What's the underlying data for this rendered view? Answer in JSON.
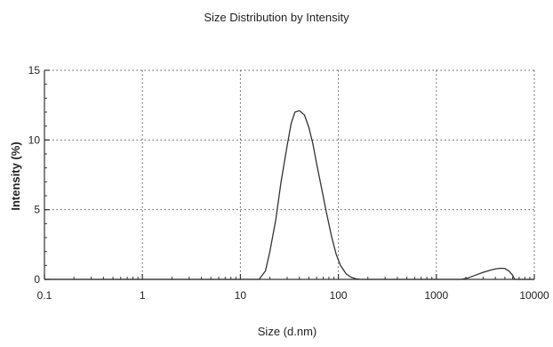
{
  "chart_data": {
    "type": "line",
    "title": "Size Distribution by Intensity",
    "xlabel": "Size (d.nm)",
    "ylabel": "Intensity (%)",
    "xscale": "log",
    "xlim": [
      0.1,
      10000
    ],
    "ylim": [
      0,
      15
    ],
    "x_ticks": [
      0.1,
      1,
      10,
      100,
      1000,
      10000
    ],
    "x_tick_labels": [
      "0.1",
      "1",
      "10",
      "100",
      "1000",
      "10000"
    ],
    "y_ticks": [
      0,
      5,
      10,
      15
    ],
    "y_tick_labels": [
      "0",
      "5",
      "10",
      "15"
    ],
    "grid": true,
    "line_color": "#333333",
    "series": [
      {
        "x": [
          0.1,
          0.3,
          1,
          3,
          10,
          13,
          15.5,
          18,
          20,
          23,
          26,
          30,
          33,
          36,
          40,
          45,
          50,
          55,
          60,
          68,
          75,
          85,
          95,
          105,
          120,
          135,
          150,
          165,
          180,
          300,
          1000,
          1500,
          1800,
          2100,
          2500,
          3000,
          3500,
          4000,
          4500,
          5000,
          5500,
          6000,
          6300,
          7000,
          10000
        ],
        "y": [
          0,
          0,
          0,
          0,
          0,
          0,
          0,
          0.6,
          2.0,
          4.3,
          7.0,
          9.6,
          11.2,
          12.0,
          12.1,
          11.8,
          10.9,
          9.7,
          8.3,
          6.4,
          4.9,
          3.1,
          1.8,
          1.0,
          0.4,
          0.15,
          0.05,
          0.01,
          0,
          0,
          0,
          0,
          0,
          0.1,
          0.3,
          0.5,
          0.65,
          0.75,
          0.8,
          0.78,
          0.6,
          0.3,
          0,
          0,
          0
        ]
      }
    ]
  }
}
